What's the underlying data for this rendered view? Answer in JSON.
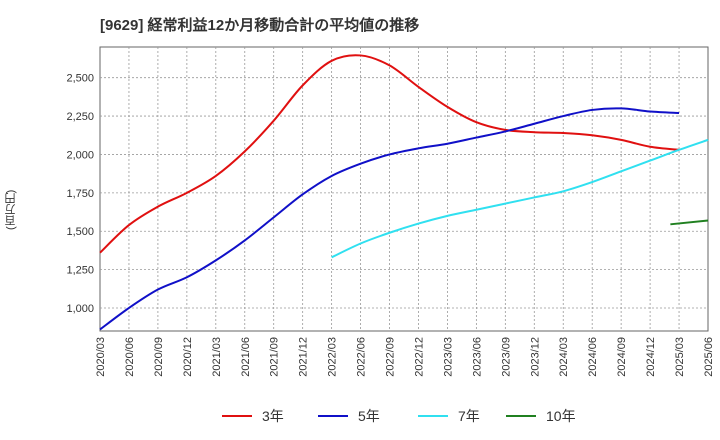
{
  "title": "[9629]  経常利益12か月移動合計の平均値の推移",
  "chart_data": {
    "type": "line",
    "title": "[9629]  経常利益12か月移動合計の平均値の推移",
    "ylabel": "(百万円)",
    "xlabel": "",
    "ylim": [
      850,
      2700
    ],
    "yticks": [
      1000,
      1250,
      1500,
      1750,
      2000,
      2250,
      2500
    ],
    "ytick_labels": [
      "1,000",
      "1,250",
      "1,500",
      "1,750",
      "2,000",
      "2,250",
      "2,500"
    ],
    "x_tick_labels": [
      "2020/03",
      "2020/06",
      "2020/09",
      "2020/12",
      "2021/03",
      "2021/06",
      "2021/09",
      "2021/12",
      "2022/03",
      "2022/06",
      "2022/09",
      "2022/12",
      "2023/03",
      "2023/06",
      "2023/09",
      "2023/12",
      "2024/03",
      "2024/06",
      "2024/09",
      "2024/12",
      "2025/03",
      "2025/06"
    ],
    "grid": true,
    "legend_position": "bottom",
    "series": [
      {
        "name": "3年",
        "color": "#e01010",
        "start_index": 0,
        "values": [
          1360,
          1540,
          1660,
          1750,
          1860,
          2020,
          2220,
          2450,
          2610,
          2645,
          2580,
          2440,
          2310,
          2210,
          2160,
          2145,
          2140,
          2125,
          2095,
          2050,
          2030
        ]
      },
      {
        "name": "5年",
        "color": "#1010c8",
        "start_index": 0,
        "values": [
          860,
          1000,
          1120,
          1200,
          1310,
          1440,
          1590,
          1740,
          1860,
          1940,
          2000,
          2040,
          2070,
          2110,
          2150,
          2200,
          2250,
          2290,
          2300,
          2280,
          2270
        ]
      },
      {
        "name": "7年",
        "color": "#30e0f0",
        "start_index": 8,
        "values": [
          1330,
          1420,
          1490,
          1550,
          1600,
          1640,
          1680,
          1720,
          1760,
          1820,
          1890,
          1960,
          2030,
          2095
        ]
      },
      {
        "name": "10年",
        "color": "#208020",
        "start_index": 20,
        "values": [
          1545,
          1570
        ],
        "x_offsets": [
          -0.3,
          0
        ]
      }
    ]
  }
}
